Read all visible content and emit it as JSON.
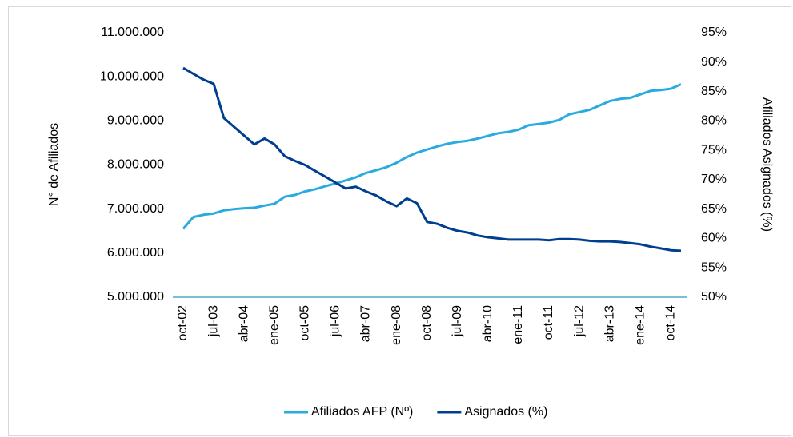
{
  "chart_data": {
    "type": "line",
    "categories": [
      "oct-02",
      null,
      null,
      "jul-03",
      null,
      null,
      "abr-04",
      null,
      null,
      "ene-05",
      null,
      null,
      "oct-05",
      null,
      null,
      "jul-06",
      null,
      null,
      "abr-07",
      null,
      null,
      "ene-08",
      null,
      null,
      "oct-08",
      null,
      null,
      "jul-09",
      null,
      null,
      "abr-10",
      null,
      null,
      "ene-11",
      null,
      null,
      "oct-11",
      null,
      null,
      "jul-12",
      null,
      null,
      "abr-13",
      null,
      null,
      "ene-14",
      null,
      null,
      "oct-14",
      null
    ],
    "series": [
      {
        "name": "Afiliados AFP (Nº)",
        "color": "#29abe2",
        "axis": "y",
        "values": [
          6550000,
          6820000,
          6870000,
          6900000,
          6970000,
          7000000,
          7020000,
          7030000,
          7080000,
          7120000,
          7280000,
          7320000,
          7400000,
          7450000,
          7520000,
          7580000,
          7650000,
          7720000,
          7820000,
          7880000,
          7950000,
          8050000,
          8180000,
          8280000,
          8350000,
          8420000,
          8480000,
          8520000,
          8550000,
          8600000,
          8660000,
          8720000,
          8750000,
          8800000,
          8900000,
          8930000,
          8960000,
          9020000,
          9150000,
          9200000,
          9250000,
          9350000,
          9450000,
          9500000,
          9520000,
          9600000,
          9680000,
          9700000,
          9730000,
          9830000
        ]
      },
      {
        "name": "Asignados (%)",
        "color": "#003e8f",
        "axis": "y2",
        "values": [
          89,
          88,
          87,
          86.3,
          80.5,
          79,
          77.5,
          76,
          77,
          76,
          74,
          73.2,
          72.5,
          71.5,
          70.5,
          69.5,
          68.5,
          68.8,
          68,
          67.3,
          66.3,
          65.5,
          66.8,
          66,
          62.8,
          62.5,
          61.8,
          61.3,
          61,
          60.5,
          60.2,
          60,
          59.8,
          59.8,
          59.8,
          59.8,
          59.7,
          59.9,
          59.9,
          59.8,
          59.6,
          59.5,
          59.5,
          59.4,
          59.2,
          59,
          58.6,
          58.3,
          58,
          57.9
        ]
      }
    ],
    "ylabel": "N° de Afiliados",
    "y2label": "Afiliados Asignados (%)",
    "ylim": [
      5000000,
      11000000
    ],
    "yticks": [
      {
        "value": 5000000,
        "label": "5.000.000"
      },
      {
        "value": 6000000,
        "label": "6.000.000"
      },
      {
        "value": 7000000,
        "label": "7.000.000"
      },
      {
        "value": 8000000,
        "label": "8.000.000"
      },
      {
        "value": 9000000,
        "label": "9.000.000"
      },
      {
        "value": 10000000,
        "label": "10.000.000"
      },
      {
        "value": 11000000,
        "label": "11.000.000"
      }
    ],
    "y2lim": [
      50,
      95
    ],
    "y2ticks": [
      {
        "value": 50,
        "label": "50%"
      },
      {
        "value": 55,
        "label": "55%"
      },
      {
        "value": 60,
        "label": "60%"
      },
      {
        "value": 65,
        "label": "65%"
      },
      {
        "value": 70,
        "label": "70%"
      },
      {
        "value": 75,
        "label": "75%"
      },
      {
        "value": 80,
        "label": "80%"
      },
      {
        "value": 85,
        "label": "85%"
      },
      {
        "value": 90,
        "label": "90%"
      },
      {
        "value": 95,
        "label": "95%"
      }
    ],
    "legend": "bottom"
  }
}
